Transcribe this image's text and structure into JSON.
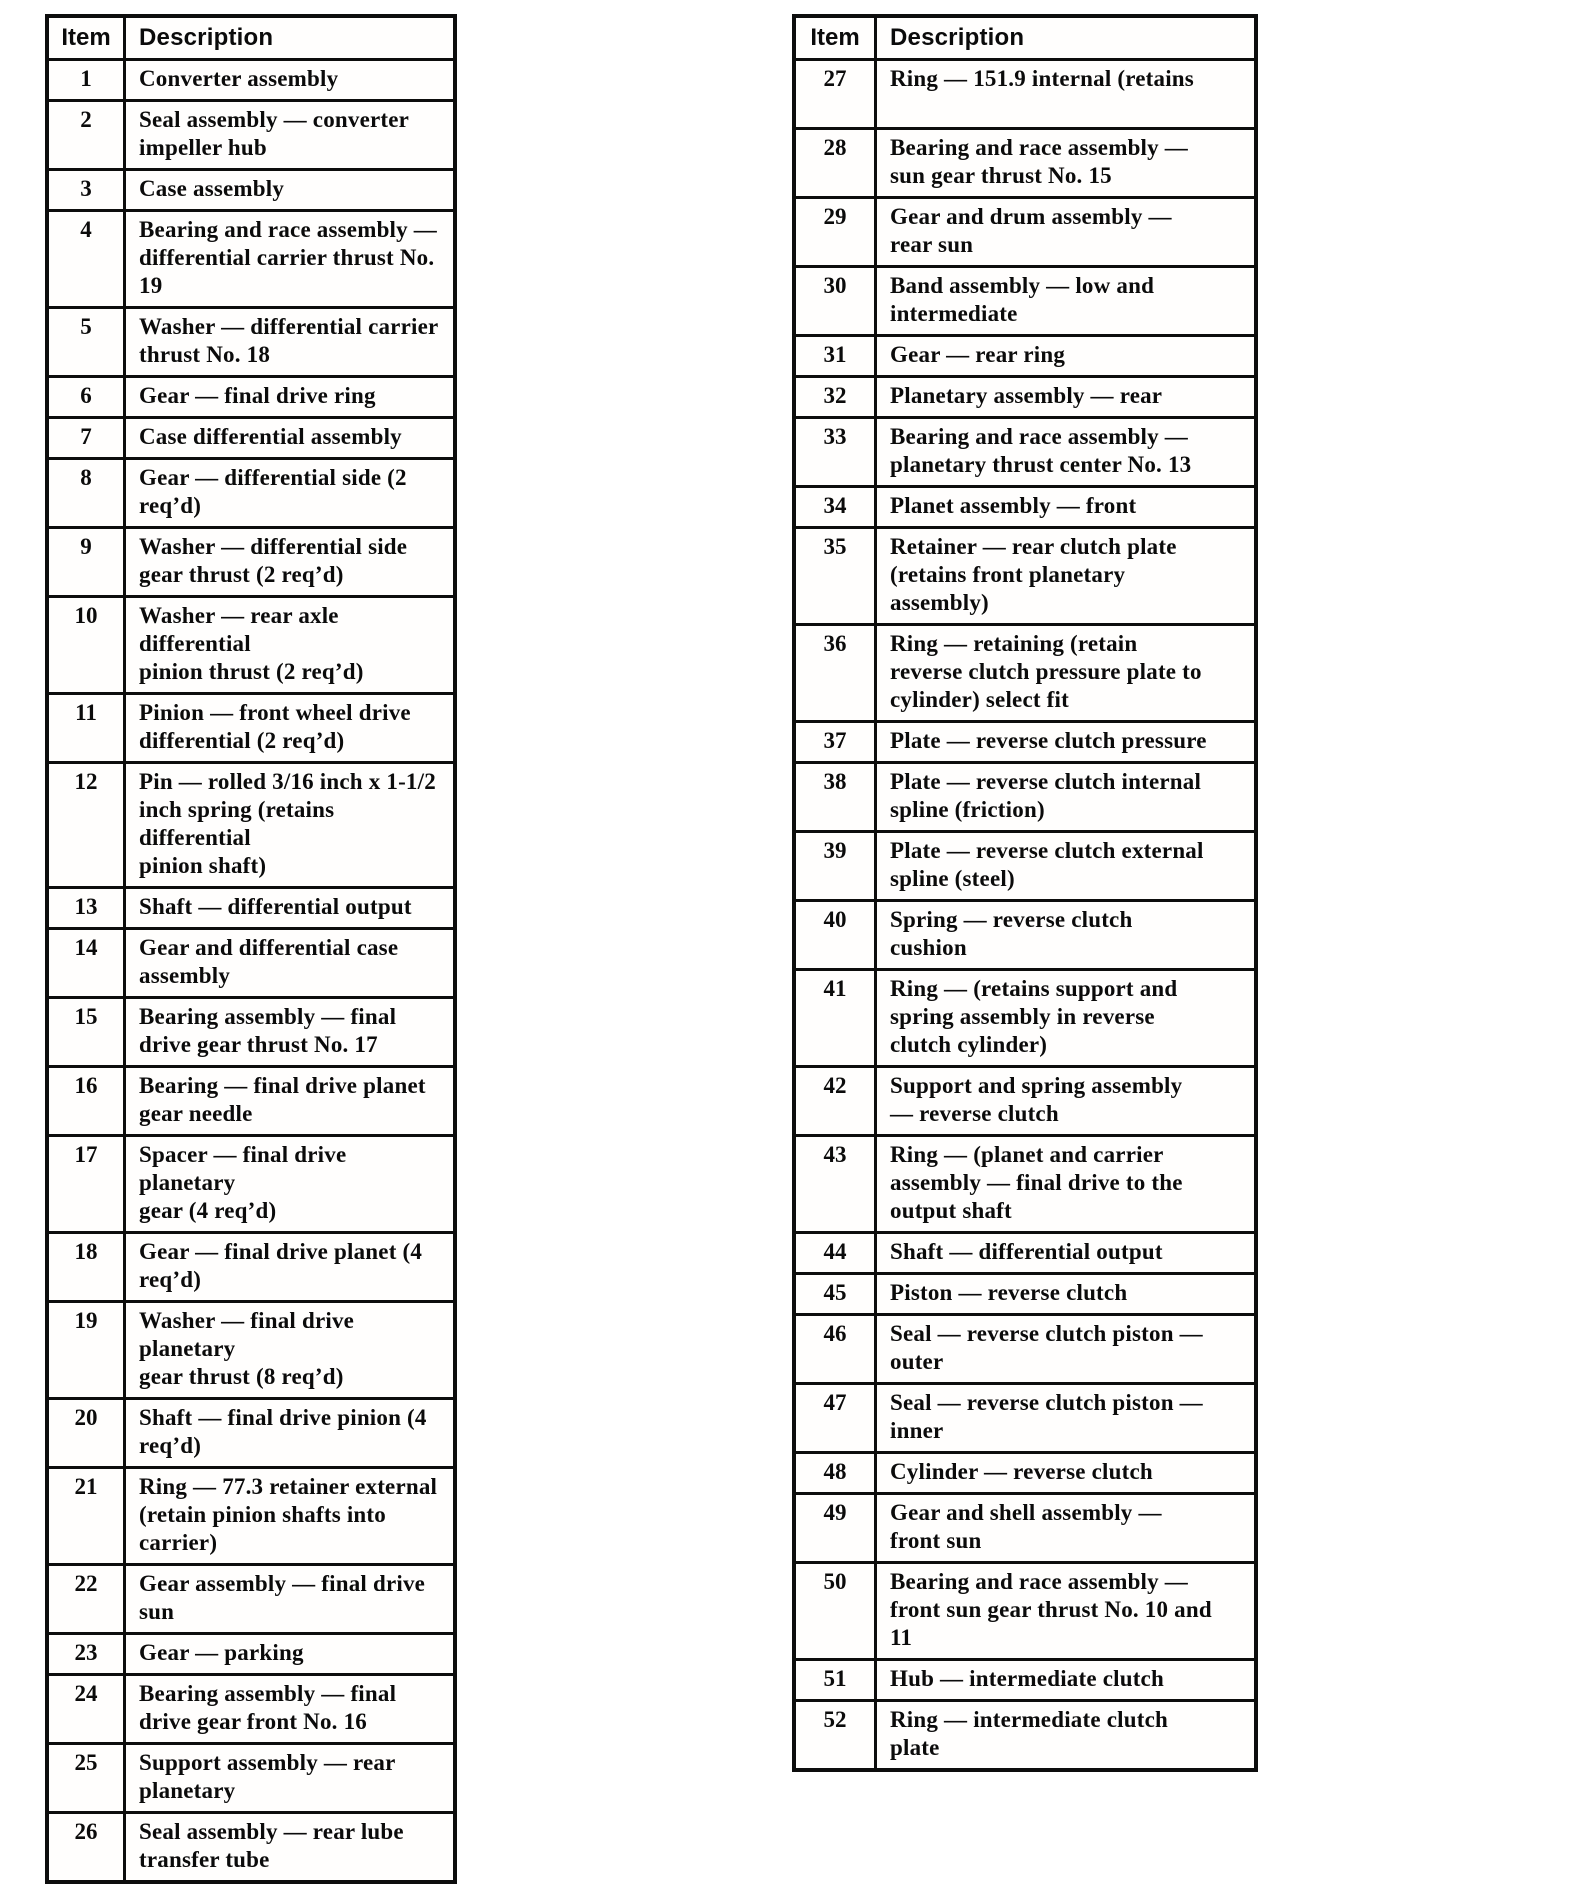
{
  "page": {
    "background_color": "#ffffff",
    "text_color": "#0b0b0b",
    "border_color": "#0d0d0d"
  },
  "tables": [
    {
      "headers": {
        "item": "Item",
        "description": "Description"
      },
      "rows": [
        {
          "item": "1",
          "description": "Converter assembly"
        },
        {
          "item": "2",
          "description": "Seal assembly — converter\nimpeller hub"
        },
        {
          "item": "3",
          "description": "Case assembly"
        },
        {
          "item": "4",
          "description": "Bearing and race assembly —\ndifferential carrier thrust No.\n19"
        },
        {
          "item": "5",
          "description": "Washer — differential carrier\nthrust No. 18"
        },
        {
          "item": "6",
          "description": "Gear — final drive ring"
        },
        {
          "item": "7",
          "description": "Case differential assembly"
        },
        {
          "item": "8",
          "description": "Gear — differential side (2\nreq’d)"
        },
        {
          "item": "9",
          "description": "Washer — differential side\ngear thrust (2 req’d)"
        },
        {
          "item": "10",
          "description": "Washer — rear axle differential\npinion thrust (2 req’d)"
        },
        {
          "item": "11",
          "description": "Pinion — front wheel drive\ndifferential (2 req’d)"
        },
        {
          "item": "12",
          "description": "Pin — rolled 3/16 inch x 1-1/2\ninch spring (retains differential\npinion shaft)"
        },
        {
          "item": "13",
          "description": "Shaft — differential output"
        },
        {
          "item": "14",
          "description": "Gear and differential case\nassembly"
        },
        {
          "item": "15",
          "description": "Bearing assembly — final\ndrive gear thrust No. 17"
        },
        {
          "item": "16",
          "description": "Bearing — final drive planet\ngear needle"
        },
        {
          "item": "17",
          "description": "Spacer — final drive planetary\ngear (4 req’d)"
        },
        {
          "item": "18",
          "description": "Gear — final drive planet (4\nreq’d)"
        },
        {
          "item": "19",
          "description": "Washer — final drive planetary\ngear thrust (8 req’d)"
        },
        {
          "item": "20",
          "description": "Shaft — final drive pinion (4\nreq’d)"
        },
        {
          "item": "21",
          "description": "Ring — 77.3 retainer external\n(retain pinion shafts into\ncarrier)"
        },
        {
          "item": "22",
          "description": "Gear assembly — final drive\nsun"
        },
        {
          "item": "23",
          "description": "Gear — parking"
        },
        {
          "item": "24",
          "description": "Bearing assembly — final\ndrive gear front No. 16"
        },
        {
          "item": "25",
          "description": "Support assembly — rear\nplanetary"
        },
        {
          "item": "26",
          "description": "Seal assembly — rear lube\ntransfer tube"
        }
      ]
    },
    {
      "headers": {
        "item": "Item",
        "description": "Description"
      },
      "rows": [
        {
          "item": "27",
          "description": "Ring — 151.9 internal (retains",
          "min_lines": 2
        },
        {
          "item": "28",
          "description": "Bearing and race assembly —\nsun gear thrust No. 15"
        },
        {
          "item": "29",
          "description": "Gear and drum assembly —\nrear sun"
        },
        {
          "item": "30",
          "description": "Band assembly — low and\nintermediate"
        },
        {
          "item": "31",
          "description": "Gear — rear ring"
        },
        {
          "item": "32",
          "description": "Planetary assembly — rear"
        },
        {
          "item": "33",
          "description": "Bearing and race assembly —\nplanetary thrust center No. 13"
        },
        {
          "item": "34",
          "description": "Planet assembly — front"
        },
        {
          "item": "35",
          "description": "Retainer — rear clutch plate\n(retains front planetary\nassembly)"
        },
        {
          "item": "36",
          "description": "Ring — retaining (retain\nreverse clutch pressure plate to\ncylinder) select fit"
        },
        {
          "item": "37",
          "description": "Plate — reverse clutch pressure"
        },
        {
          "item": "38",
          "description": "Plate — reverse clutch internal\nspline (friction)"
        },
        {
          "item": "39",
          "description": "Plate — reverse clutch external\nspline (steel)"
        },
        {
          "item": "40",
          "description": "Spring — reverse clutch\ncushion"
        },
        {
          "item": "41",
          "description": "Ring — (retains support and\nspring assembly in reverse\nclutch cylinder)"
        },
        {
          "item": "42",
          "description": "Support and spring assembly\n— reverse clutch"
        },
        {
          "item": "43",
          "description": "Ring — (planet and carrier\nassembly — final drive to the\noutput shaft"
        },
        {
          "item": "44",
          "description": "Shaft — differential output"
        },
        {
          "item": "45",
          "description": "Piston — reverse clutch"
        },
        {
          "item": "46",
          "description": "Seal — reverse clutch piston —\nouter"
        },
        {
          "item": "47",
          "description": "Seal — reverse clutch piston —\ninner"
        },
        {
          "item": "48",
          "description": "Cylinder — reverse clutch"
        },
        {
          "item": "49",
          "description": "Gear and shell assembly —\nfront sun"
        },
        {
          "item": "50",
          "description": "Bearing and race assembly —\nfront sun gear thrust No. 10 and\n11"
        },
        {
          "item": "51",
          "description": "Hub — intermediate clutch"
        },
        {
          "item": "52",
          "description": "Ring — intermediate clutch\nplate"
        }
      ]
    }
  ]
}
